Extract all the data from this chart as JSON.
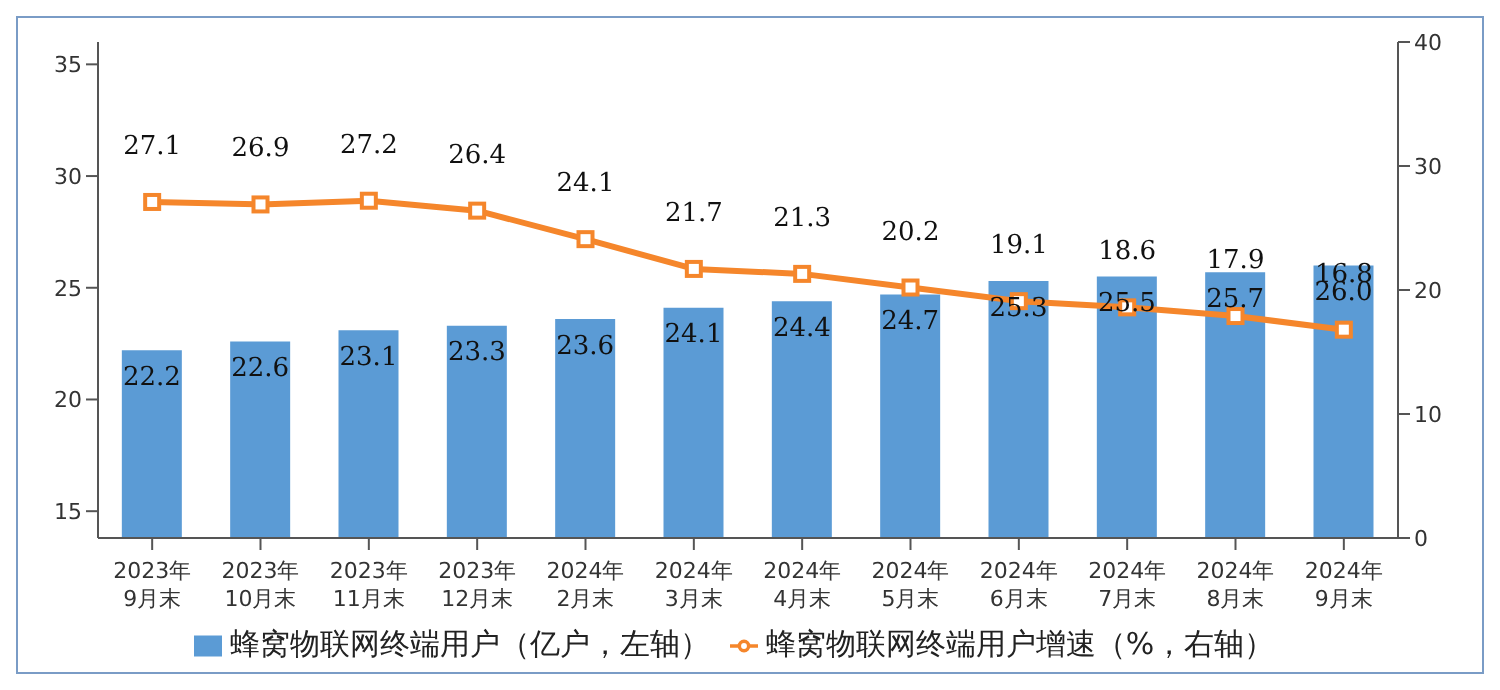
{
  "chart_data": {
    "type": "bar",
    "categories": [
      "2023年\n9月末",
      "2023年\n10月末",
      "2023年\n11月末",
      "2023年\n12月末",
      "2024年\n2月末",
      "2024年\n3月末",
      "2024年\n4月末",
      "2024年\n5月末",
      "2024年\n6月末",
      "2024年\n7月末",
      "2024年\n8月末",
      "2024年\n9月末"
    ],
    "series": [
      {
        "name": "蜂窝物联网终端用户（亿户，左轴）",
        "color": "#5b9bd5",
        "values": [
          22.2,
          22.6,
          23.1,
          23.3,
          23.6,
          24.1,
          24.4,
          24.7,
          25.3,
          25.5,
          25.7,
          26.0
        ],
        "value_labels": [
          "22.2",
          "22.6",
          "23.1",
          "23.3",
          "23.6",
          "24.1",
          "24.4",
          "24.7",
          "25.3",
          "25.5",
          "25.7",
          "26.0"
        ]
      },
      {
        "name": "蜂窝物联网终端用户增速（%，右轴）",
        "type": "line",
        "axis": "y2",
        "color": "#f5862b",
        "marker": "square",
        "values": [
          27.1,
          26.9,
          27.2,
          26.4,
          24.1,
          21.7,
          21.3,
          20.2,
          19.1,
          18.6,
          17.9,
          16.8
        ]
      }
    ],
    "ylim": [
      13.8,
      36
    ],
    "yticks": [
      15,
      20,
      25,
      30,
      35
    ],
    "y2lim": [
      0,
      40
    ],
    "y2ticks": [
      0,
      10,
      20,
      30,
      40
    ],
    "data_labels": true,
    "grid": false,
    "legend": "bottom"
  }
}
